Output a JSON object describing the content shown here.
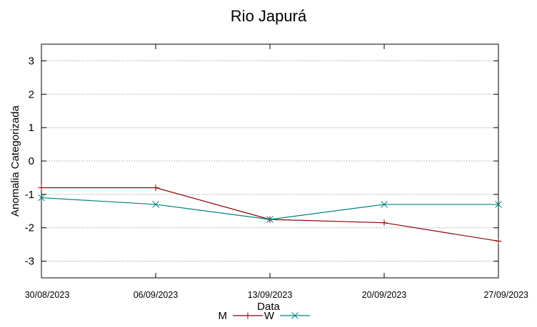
{
  "chart_data": {
    "type": "line",
    "title": "Rio Japurá",
    "xlabel": "Data",
    "ylabel": "Anomalia Categorizada",
    "categories": [
      "30/08/2023",
      "06/09/2023",
      "13/09/2023",
      "20/09/2023",
      "27/09/2023"
    ],
    "yticks": [
      3,
      2,
      1,
      0,
      -1,
      -2,
      -3
    ],
    "ylim": [
      -3.5,
      3.5
    ],
    "grid": true,
    "legend_position": "bottom",
    "series": [
      {
        "name": "M",
        "values": [
          -0.8,
          -0.8,
          -1.75,
          -1.85,
          -2.4
        ],
        "color": "#8b0000",
        "marker": "plus"
      },
      {
        "name": "W",
        "values": [
          -1.1,
          -1.3,
          -1.75,
          -1.3,
          -1.3
        ],
        "color": "#008080",
        "marker": "cross"
      }
    ]
  }
}
